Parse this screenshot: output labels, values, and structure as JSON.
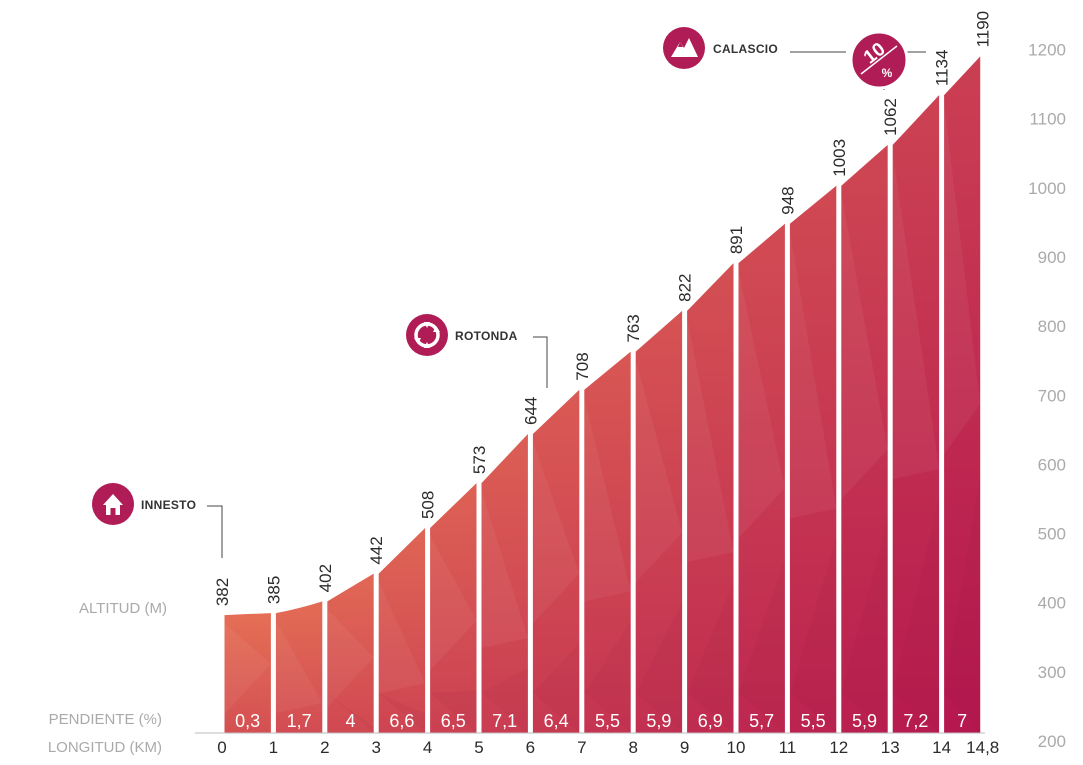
{
  "chart_data": {
    "type": "area",
    "x": [
      0,
      1,
      2,
      3,
      4,
      5,
      6,
      7,
      8,
      9,
      10,
      11,
      12,
      13,
      14,
      14.8
    ],
    "x_labels": [
      "0",
      "1",
      "2",
      "3",
      "4",
      "5",
      "6",
      "7",
      "8",
      "9",
      "10",
      "11",
      "12",
      "13",
      "14",
      "14,8"
    ],
    "altitudes": [
      382,
      385,
      402,
      442,
      508,
      573,
      644,
      708,
      763,
      822,
      891,
      948,
      1003,
      1062,
      1134,
      1190
    ],
    "altitude_labels": [
      "382",
      "385",
      "402",
      "442",
      "508",
      "573",
      "644",
      "708",
      "763",
      "822",
      "891",
      "948",
      "1003",
      "1062",
      "1134",
      "1190"
    ],
    "slopes": [
      "0,3",
      "1,7",
      "4",
      "6,6",
      "6,5",
      "7,1",
      "6,4",
      "5,5",
      "5,9",
      "6,9",
      "5,7",
      "5,5",
      "5,9",
      "7,2",
      "7"
    ],
    "ylim": [
      200,
      1200
    ],
    "y_ticks": [
      "200",
      "300",
      "400",
      "500",
      "600",
      "700",
      "800",
      "900",
      "1000",
      "1100",
      "1200"
    ],
    "row_labels": {
      "altitude": "ALTITUD (M)",
      "slope": "PENDIENTE (%)",
      "length": "LONGITUD (KM)"
    },
    "points_of_interest": [
      {
        "label": "INNESTO",
        "km": 0,
        "icon": "house-icon"
      },
      {
        "label": "ROTONDA",
        "km": 7,
        "icon": "roundabout-icon"
      },
      {
        "label": "CALASCIO",
        "km": 14.8,
        "icon": "mountain-icon"
      }
    ],
    "max_gradient_badge": {
      "value": "10",
      "unit": "%"
    },
    "colors": {
      "low": "#e56f55",
      "high": "#b5174f",
      "icon": "#b01d56",
      "guide": "#444444"
    }
  }
}
